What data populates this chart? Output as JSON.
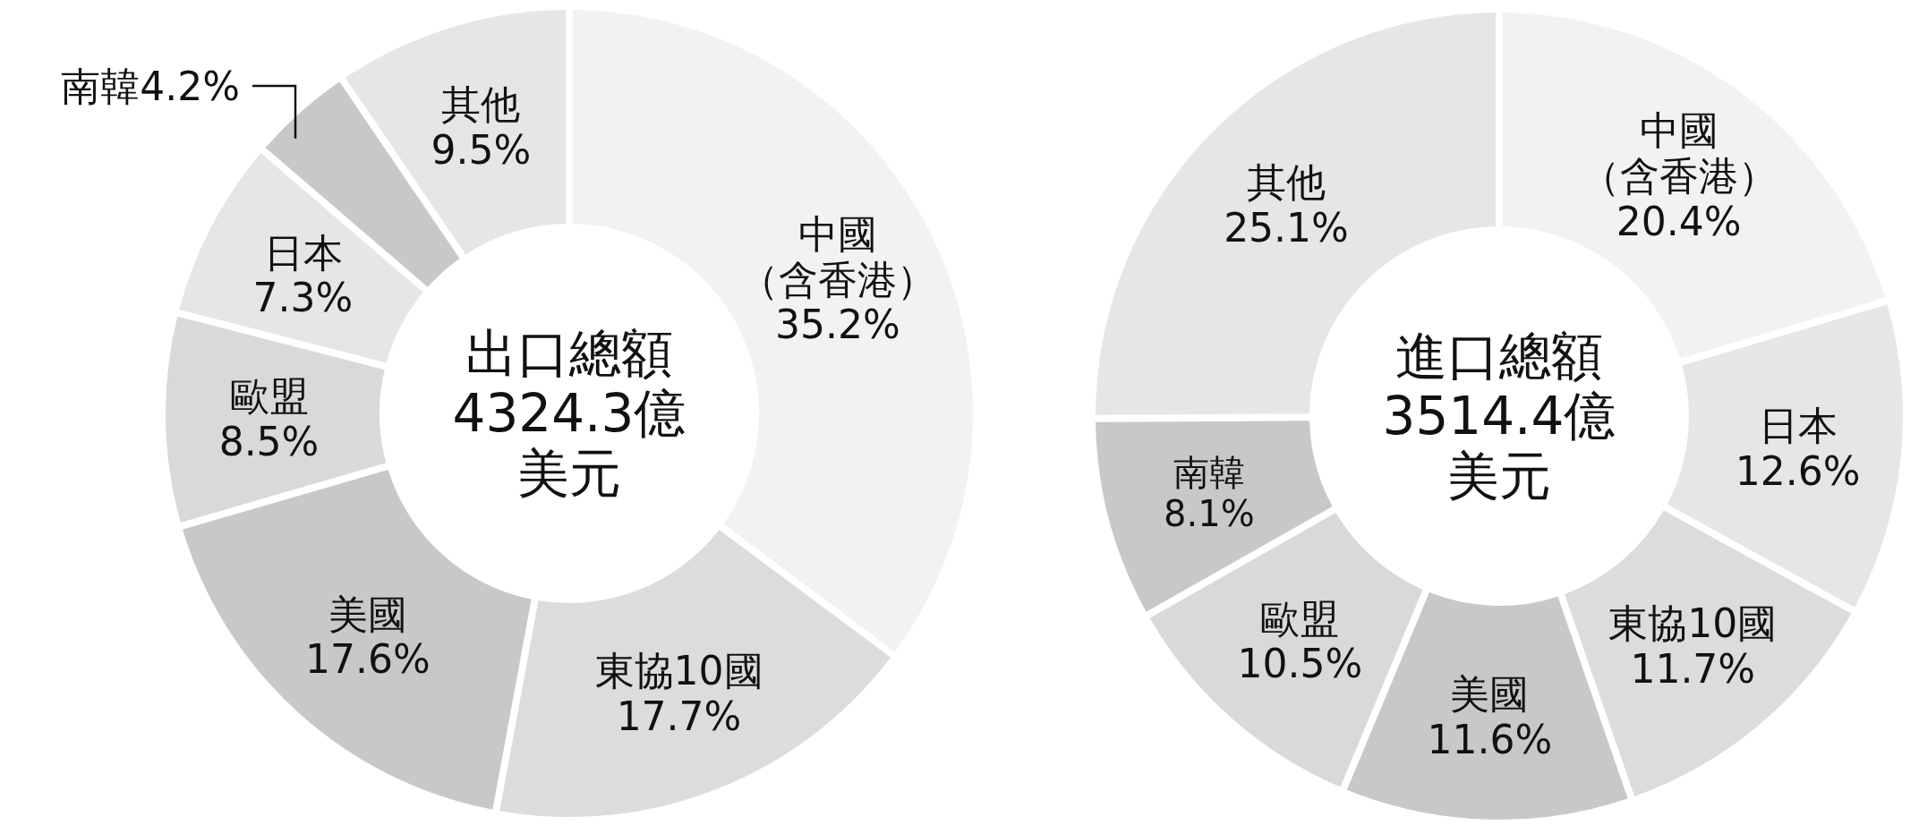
{
  "chart_data": [
    {
      "type": "donut",
      "annotations": [
        "出口總額",
        "4324.3億",
        "美元"
      ],
      "categories": [
        "中國（含香港）",
        "東協10國",
        "美國",
        "歐盟",
        "日本",
        "南韓",
        "其他"
      ],
      "values": [
        35.2,
        17.7,
        17.6,
        8.5,
        7.3,
        4.2,
        9.5
      ],
      "value_labels": [
        "35.2%",
        "17.7%",
        "17.6%",
        "8.5%",
        "7.3%",
        "4.2%",
        "9.5%"
      ],
      "colors": [
        "#f2f2f2",
        "#dcdcdc",
        "#c8c8c8",
        "#d9d9d9",
        "#e6e6e6",
        "#c8c8c8",
        "#e6e6e6"
      ]
    },
    {
      "type": "donut",
      "annotations": [
        "進口總額",
        "3514.4億",
        "美元"
      ],
      "categories": [
        "中國（含香港）",
        "日本",
        "東協10國",
        "美國",
        "歐盟",
        "南韓",
        "其他"
      ],
      "values": [
        20.4,
        12.6,
        11.7,
        11.6,
        10.5,
        8.1,
        25.1
      ],
      "value_labels": [
        "20.4%",
        "12.6%",
        "11.7%",
        "11.6%",
        "10.5%",
        "8.1%",
        "25.1%"
      ],
      "colors": [
        "#f2f2f2",
        "#e6e6e6",
        "#dcdcdc",
        "#c8c8c8",
        "#d9d9d9",
        "#c8c8c8",
        "#e6e6e6"
      ]
    }
  ]
}
